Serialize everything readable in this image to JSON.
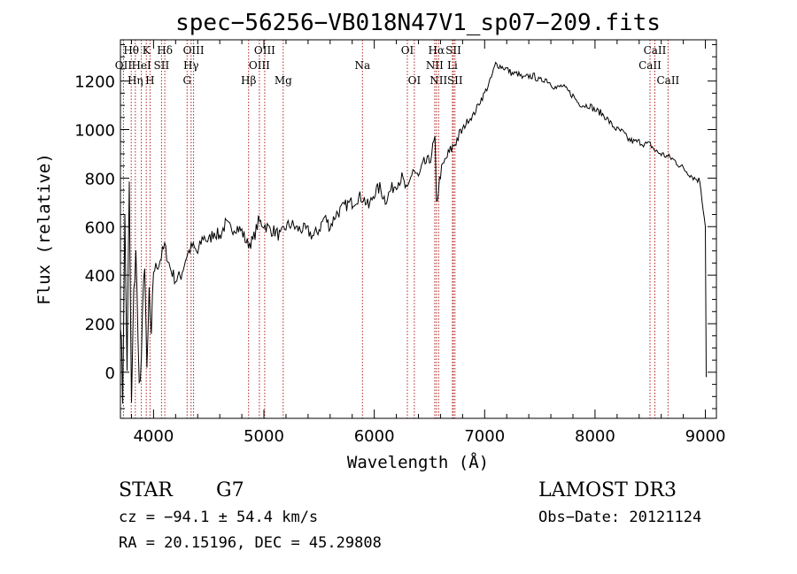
{
  "chart_data": {
    "type": "line",
    "title": "spec−56256−VB018N47V1_sp07−209.fits",
    "xlabel": "Wavelength (Å)",
    "ylabel": "Flux (relative)",
    "xlim": [
      3700,
      9100
    ],
    "ylim": [
      -190,
      1370
    ],
    "xticks": [
      4000,
      5000,
      6000,
      7000,
      8000,
      9000
    ],
    "yticks": [
      0,
      200,
      400,
      600,
      800,
      1000,
      1200
    ],
    "grid": false,
    "series": [
      {
        "name": "flux",
        "x": [
          3700,
          3720,
          3740,
          3760,
          3780,
          3800,
          3820,
          3840,
          3860,
          3880,
          3900,
          3920,
          3940,
          3960,
          3980,
          4000,
          4050,
          4100,
          4150,
          4200,
          4250,
          4300,
          4350,
          4400,
          4450,
          4500,
          4550,
          4600,
          4650,
          4700,
          4750,
          4800,
          4850,
          4900,
          4950,
          5000,
          5050,
          5100,
          5150,
          5200,
          5250,
          5300,
          5350,
          5400,
          5450,
          5500,
          5550,
          5600,
          5650,
          5700,
          5750,
          5800,
          5850,
          5900,
          5950,
          6000,
          6050,
          6100,
          6150,
          6200,
          6250,
          6300,
          6350,
          6400,
          6450,
          6500,
          6550,
          6563,
          6600,
          6650,
          6700,
          6750,
          6800,
          6850,
          6900,
          6950,
          7000,
          7050,
          7100,
          7150,
          7200,
          7250,
          7300,
          7350,
          7400,
          7450,
          7500,
          7550,
          7600,
          7650,
          7700,
          7750,
          7800,
          7850,
          7900,
          7950,
          8000,
          8050,
          8100,
          8150,
          8200,
          8250,
          8300,
          8350,
          8400,
          8450,
          8500,
          8550,
          8600,
          8650,
          8700,
          8750,
          8800,
          8850,
          8900,
          8950,
          9000
        ],
        "values": [
          250,
          -100,
          620,
          30,
          750,
          -150,
          300,
          520,
          100,
          -60,
          200,
          480,
          -40,
          330,
          100,
          420,
          450,
          520,
          430,
          380,
          400,
          480,
          520,
          490,
          560,
          540,
          580,
          560,
          610,
          590,
          600,
          580,
          530,
          540,
          620,
          610,
          590,
          580,
          560,
          600,
          610,
          590,
          590,
          580,
          560,
          590,
          640,
          600,
          650,
          670,
          690,
          700,
          720,
          720,
          680,
          740,
          760,
          710,
          750,
          780,
          800,
          740,
          840,
          800,
          860,
          870,
          960,
          690,
          820,
          880,
          920,
          960,
          1000,
          1040,
          1060,
          1110,
          1150,
          1200,
          1270,
          1260,
          1250,
          1230,
          1230,
          1210,
          1220,
          1220,
          1200,
          1210,
          1190,
          1170,
          1180,
          1160,
          1140,
          1110,
          1100,
          1100,
          1080,
          1070,
          1050,
          1020,
          1000,
          990,
          960,
          950,
          950,
          940,
          940,
          910,
          900,
          890,
          880,
          860,
          840,
          820,
          800,
          790,
          600
        ]
      }
    ],
    "lines": [
      {
        "label": "Hθ",
        "x": 3798,
        "row": 1
      },
      {
        "label": "OII",
        "x": 3727,
        "row": 2
      },
      {
        "label": "Hη",
        "x": 3835,
        "row": 3
      },
      {
        "label": "HeI",
        "x": 3889,
        "row": 2
      },
      {
        "label": "K",
        "x": 3934,
        "row": 1
      },
      {
        "label": "H",
        "x": 3968,
        "row": 3
      },
      {
        "label": "SII",
        "x": 4072,
        "row": 2
      },
      {
        "label": "Hδ",
        "x": 4102,
        "row": 1
      },
      {
        "label": "OIII",
        "x": 4363,
        "row": 1
      },
      {
        "label": "Hγ",
        "x": 4340,
        "row": 2
      },
      {
        "label": "G",
        "x": 4304,
        "row": 3
      },
      {
        "label": "Hβ",
        "x": 4861,
        "row": 3
      },
      {
        "label": "OIII",
        "x": 4959,
        "row": 2
      },
      {
        "label": "OIII",
        "x": 5007,
        "row": 1
      },
      {
        "label": "Mg",
        "x": 5175,
        "row": 3
      },
      {
        "label": "Na",
        "x": 5893,
        "row": 2
      },
      {
        "label": "OI",
        "x": 6300,
        "row": 1
      },
      {
        "label": "OI",
        "x": 6363,
        "row": 3
      },
      {
        "label": "NII",
        "x": 6548,
        "row": 2
      },
      {
        "label": "Hα",
        "x": 6563,
        "row": 1
      },
      {
        "label": "NII",
        "x": 6583,
        "row": 3
      },
      {
        "label": "Li",
        "x": 6708,
        "row": 2
      },
      {
        "label": "SII",
        "x": 6717,
        "row": 1
      },
      {
        "label": "SII",
        "x": 6731,
        "row": 3
      },
      {
        "label": "CaII",
        "x": 8498,
        "row": 2
      },
      {
        "label": "CaII",
        "x": 8542,
        "row": 1
      },
      {
        "label": "CaII",
        "x": 8662,
        "row": 3
      }
    ]
  },
  "info": {
    "class_label": "STAR",
    "subclass_label": "G7",
    "survey": "LAMOST DR3",
    "cz": "cz = −94.1 ± 54.4 km/s",
    "obs_date": "Obs−Date: 20121124",
    "radec": "RA =  20.15196, DEC =  45.29808"
  },
  "colors": {
    "axis": "#000000",
    "spectrum": "#000000",
    "line_marker": "#b22222"
  }
}
